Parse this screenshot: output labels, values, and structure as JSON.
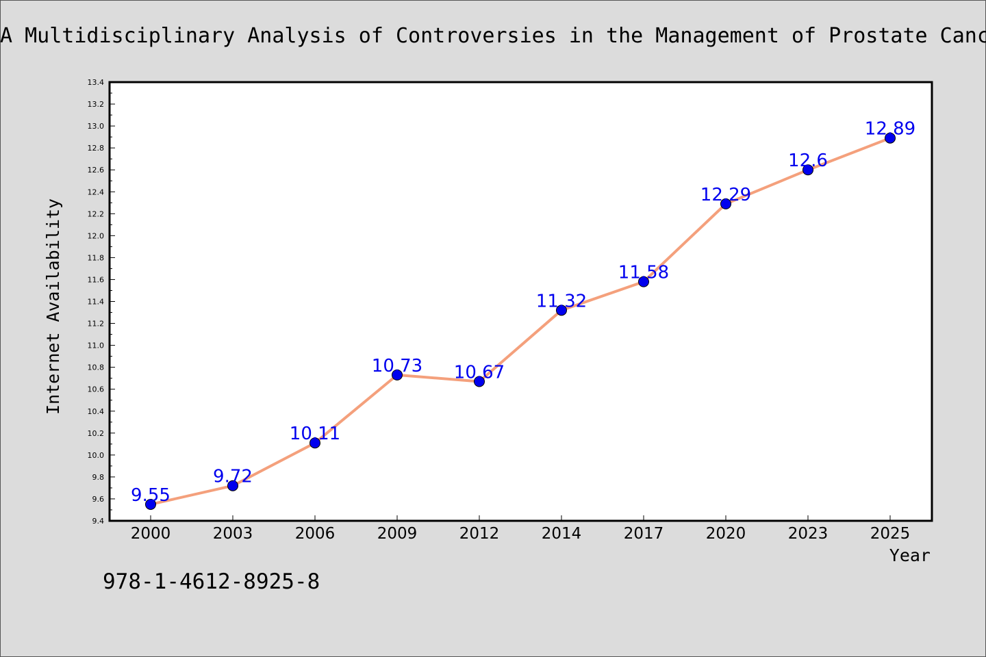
{
  "chart_data": {
    "type": "line",
    "title": "A Multidisciplinary Analysis of Controversies in the Management of Prostate Canc",
    "xlabel": "Year",
    "ylabel": "Internet Availability",
    "categories": [
      "2000",
      "2003",
      "2006",
      "2009",
      "2012",
      "2014",
      "2017",
      "2020",
      "2023",
      "2025"
    ],
    "series": [
      {
        "values": [
          9.55,
          9.72,
          10.11,
          10.73,
          10.67,
          11.32,
          11.58,
          12.29,
          12.6,
          12.89
        ],
        "labels": [
          "9.55",
          "9.72",
          "10.11",
          "10.73",
          "10.67",
          "11.32",
          "11.58",
          "12.29",
          "12.6",
          "12.89"
        ],
        "line_color": "#f4a07c",
        "marker_color": "#0000ee",
        "label_color": "#0000ee"
      }
    ],
    "ylim": [
      9.4,
      13.4
    ],
    "y_ticks": [
      "9.4",
      "9.6",
      "9.8",
      "10.0",
      "10.2",
      "10.4",
      "10.6",
      "10.8",
      "11.0",
      "11.2",
      "11.4",
      "11.6",
      "11.8",
      "12.0",
      "12.2",
      "12.4",
      "12.6",
      "12.8",
      "13.0",
      "13.2",
      "13.4"
    ],
    "grid": false,
    "legend": "none"
  },
  "caption": "978-1-4612-8925-8"
}
